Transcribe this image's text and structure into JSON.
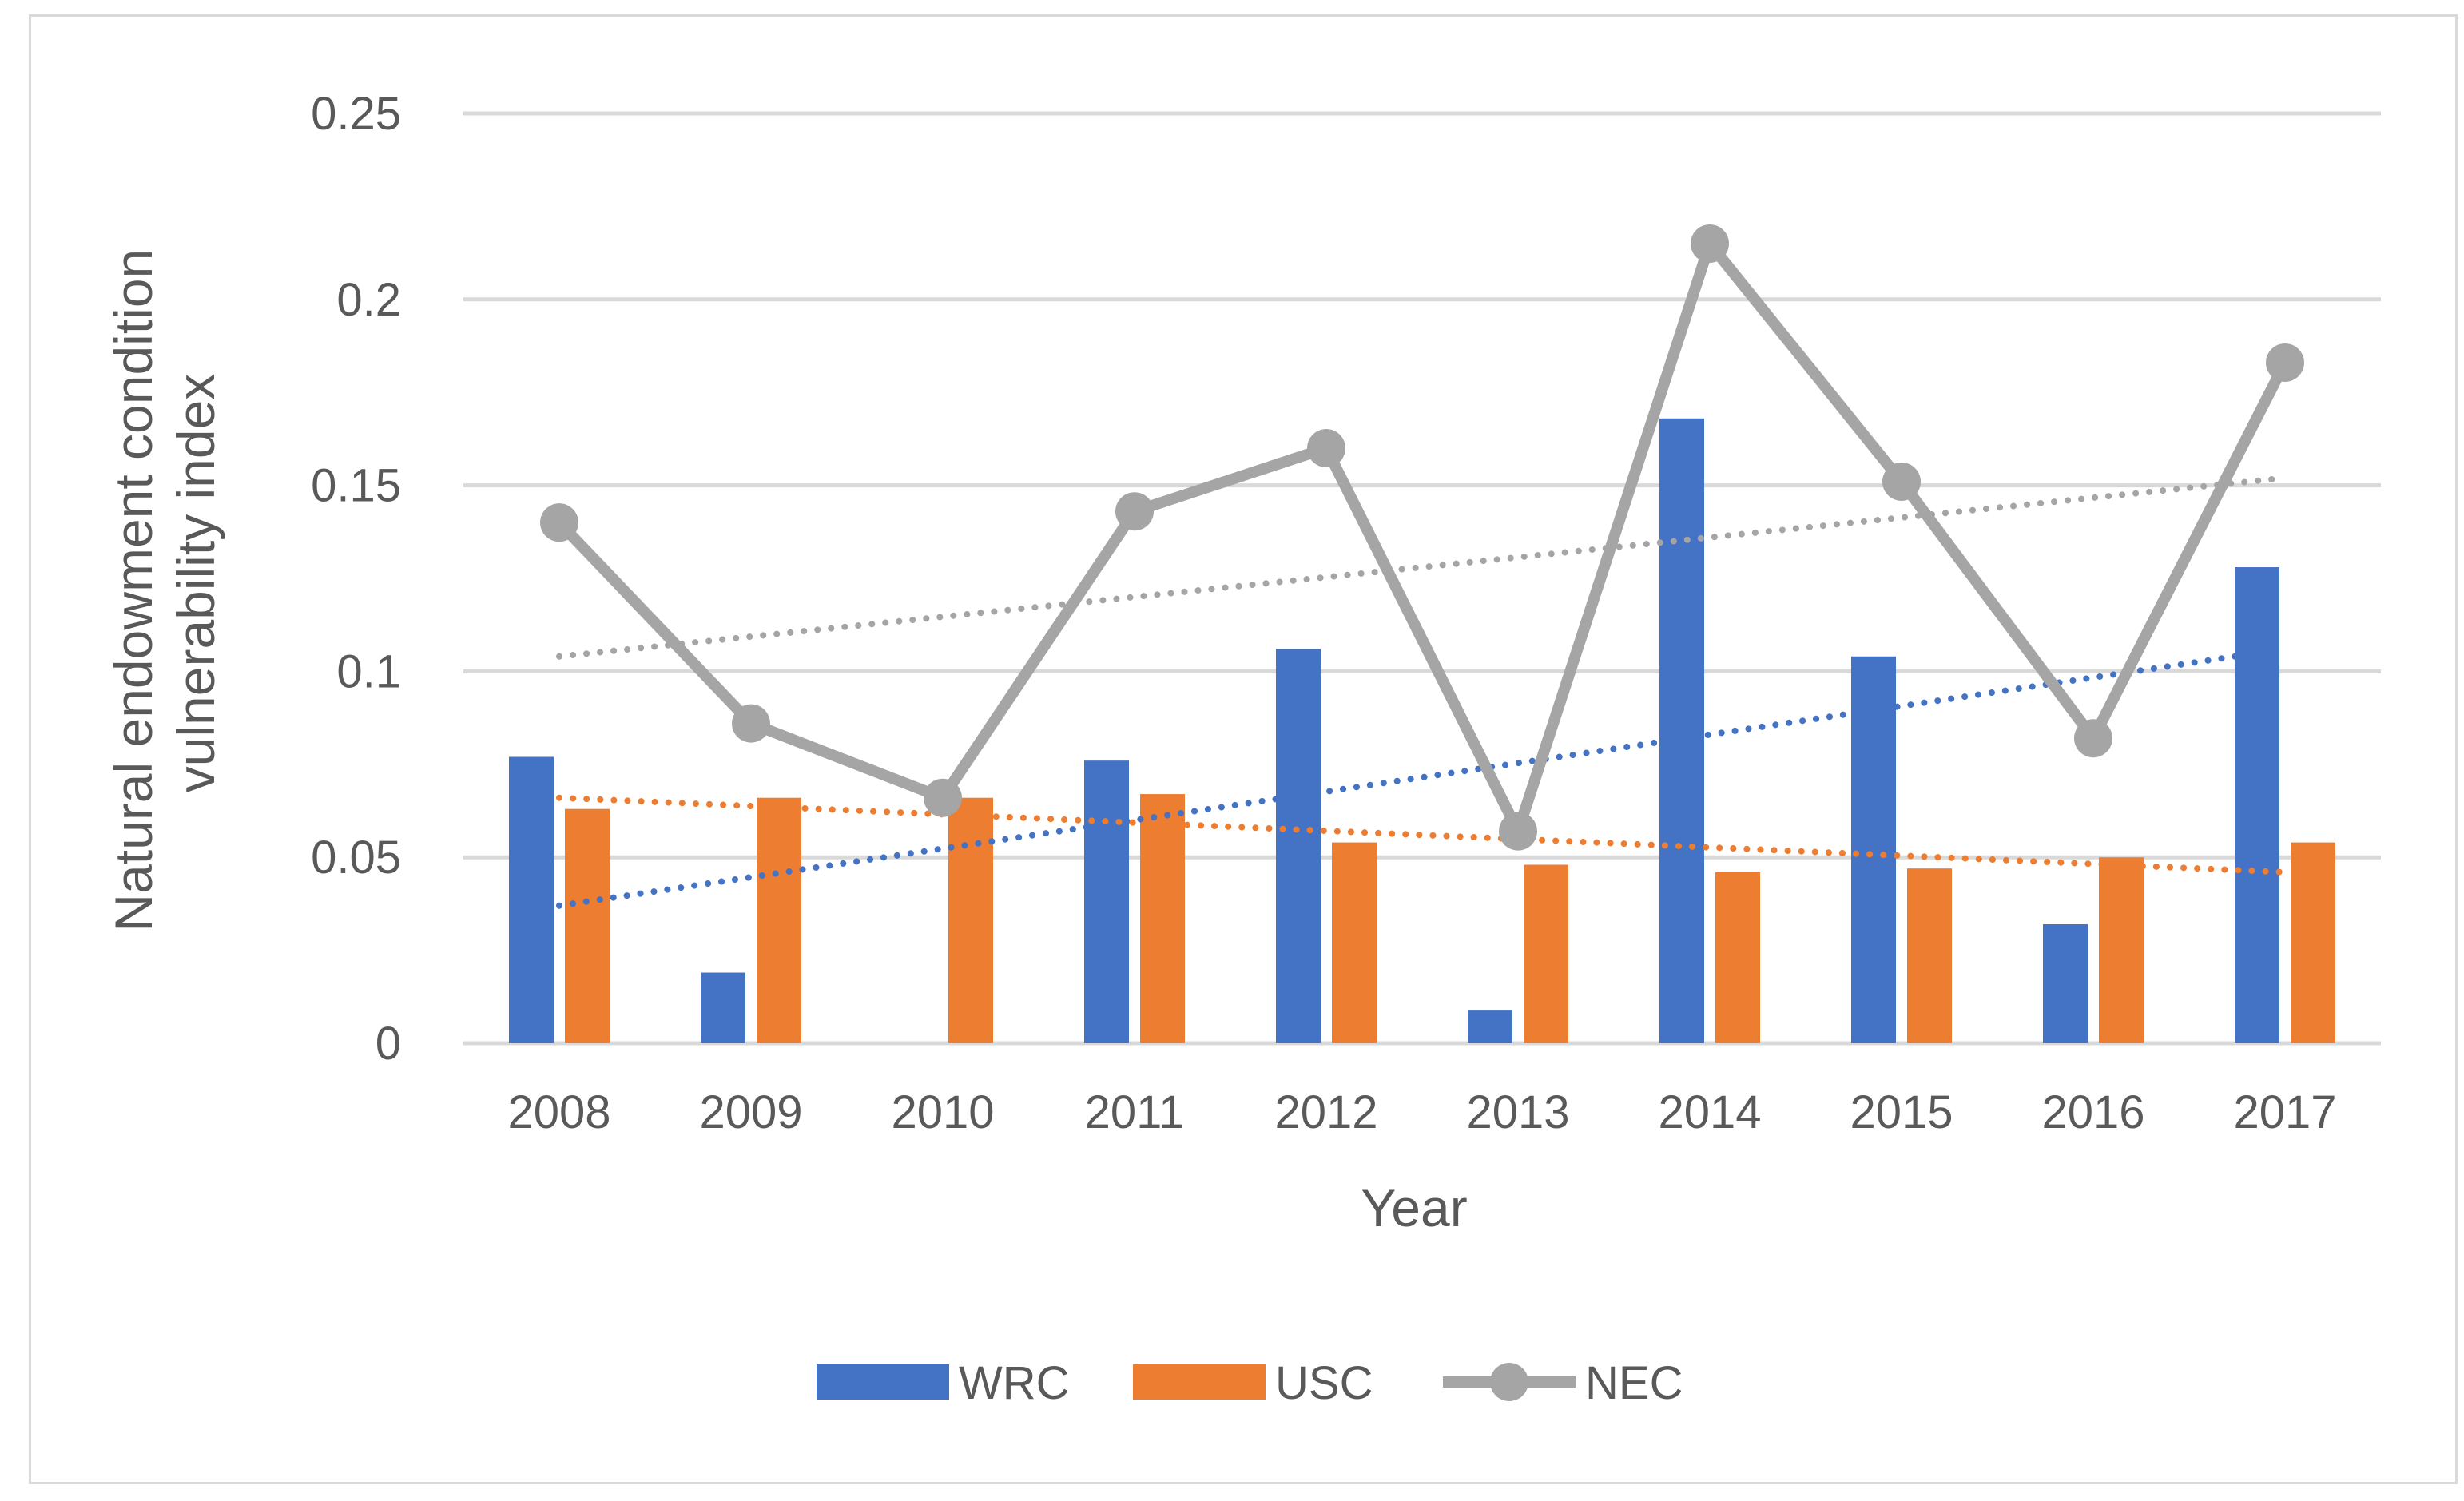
{
  "chart_data": {
    "type": "bar",
    "title": "",
    "xlabel": "Year",
    "ylabel_lines": [
      "Natural endowment condition",
      "vulnerability index"
    ],
    "categories": [
      "2008",
      "2009",
      "2010",
      "2011",
      "2012",
      "2013",
      "2014",
      "2015",
      "2016",
      "2017"
    ],
    "ylim": [
      0,
      0.25
    ],
    "yticks": [
      {
        "value": 0,
        "label": "0"
      },
      {
        "value": 0.05,
        "label": "0.05"
      },
      {
        "value": 0.1,
        "label": "0.1"
      },
      {
        "value": 0.15,
        "label": "0.15"
      },
      {
        "value": 0.2,
        "label": "0.2"
      },
      {
        "value": 0.25,
        "label": "0.25"
      }
    ],
    "grid": true,
    "legend_position": "bottom",
    "series": [
      {
        "name": "WRC",
        "type": "bar",
        "color": "#4472c4",
        "values": [
          0.077,
          0.019,
          0.0,
          0.076,
          0.106,
          0.009,
          0.168,
          0.104,
          0.032,
          0.128
        ],
        "trendline": {
          "style": "dotted",
          "start": 0.037,
          "end": 0.106
        }
      },
      {
        "name": "USC",
        "type": "bar",
        "color": "#ed7d31",
        "values": [
          0.063,
          0.066,
          0.066,
          0.067,
          0.054,
          0.048,
          0.046,
          0.047,
          0.05,
          0.054
        ],
        "trendline": {
          "style": "dotted",
          "start": 0.066,
          "end": 0.046
        }
      },
      {
        "name": "NEC",
        "type": "line",
        "color": "#a5a5a5",
        "values": [
          0.14,
          0.086,
          0.066,
          0.143,
          0.16,
          0.057,
          0.215,
          0.151,
          0.082,
          0.183
        ],
        "trendline": {
          "style": "dotted",
          "start": 0.104,
          "end": 0.152
        }
      }
    ]
  }
}
